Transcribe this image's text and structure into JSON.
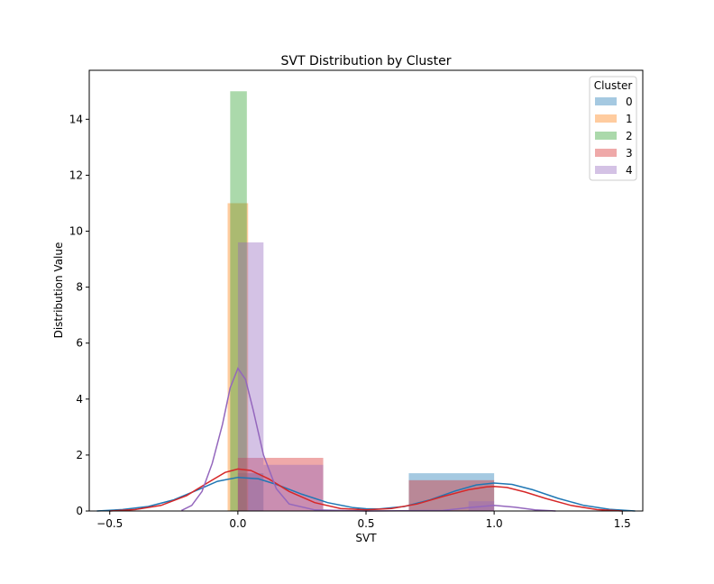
{
  "chart_data": {
    "type": "histogram",
    "title": "SVT Distribution by Cluster",
    "xlabel": "SVT",
    "ylabel": "Distribution Value",
    "xlim": [
      -0.58,
      1.58
    ],
    "ylim": [
      0,
      15.75
    ],
    "xticks": [
      -0.5,
      0.0,
      0.5,
      1.0,
      1.5
    ],
    "xtick_labels": [
      "−0.5",
      "0.0",
      "0.5",
      "1.0",
      "1.5"
    ],
    "yticks": [
      0,
      2,
      4,
      6,
      8,
      10,
      12,
      14
    ],
    "ytick_labels": [
      "0",
      "2",
      "4",
      "6",
      "8",
      "10",
      "12",
      "14"
    ],
    "grid": false,
    "legend": {
      "title": "Cluster",
      "position": "top-right",
      "labels": [
        "0",
        "1",
        "2",
        "3",
        "4"
      ]
    },
    "colors": [
      "#1f77b4",
      "#ff7f0e",
      "#2ca02c",
      "#d62728",
      "#9467bd"
    ],
    "bar_alpha": 0.4,
    "series": [
      {
        "name": "0",
        "bars": [
          {
            "x0": 0.0,
            "x1": 0.1,
            "value": 1.35
          },
          {
            "x0": 0.667,
            "x1": 1.0,
            "value": 1.35
          }
        ],
        "kde": [
          [
            -0.55,
            0.0
          ],
          [
            -0.45,
            0.05
          ],
          [
            -0.35,
            0.16
          ],
          [
            -0.25,
            0.4
          ],
          [
            -0.15,
            0.78
          ],
          [
            -0.08,
            1.06
          ],
          [
            0.0,
            1.2
          ],
          [
            0.08,
            1.15
          ],
          [
            0.15,
            0.95
          ],
          [
            0.25,
            0.6
          ],
          [
            0.35,
            0.3
          ],
          [
            0.45,
            0.12
          ],
          [
            0.5,
            0.08
          ],
          [
            0.55,
            0.07
          ],
          [
            0.65,
            0.16
          ],
          [
            0.75,
            0.4
          ],
          [
            0.85,
            0.72
          ],
          [
            0.93,
            0.93
          ],
          [
            1.0,
            1.0
          ],
          [
            1.07,
            0.95
          ],
          [
            1.15,
            0.76
          ],
          [
            1.25,
            0.45
          ],
          [
            1.35,
            0.2
          ],
          [
            1.45,
            0.06
          ],
          [
            1.55,
            0.0
          ]
        ]
      },
      {
        "name": "1",
        "bars": [
          {
            "x0": -0.04,
            "x1": 0.04,
            "value": 11.0
          }
        ],
        "kde": []
      },
      {
        "name": "2",
        "bars": [
          {
            "x0": -0.03,
            "x1": 0.035,
            "value": 15.0
          }
        ],
        "kde": []
      },
      {
        "name": "3",
        "bars": [
          {
            "x0": 0.0,
            "x1": 0.333,
            "value": 1.9
          },
          {
            "x0": 0.667,
            "x1": 1.0,
            "value": 1.1
          }
        ],
        "kde": [
          [
            -0.5,
            0.0
          ],
          [
            -0.4,
            0.05
          ],
          [
            -0.3,
            0.2
          ],
          [
            -0.2,
            0.55
          ],
          [
            -0.12,
            1.0
          ],
          [
            -0.05,
            1.38
          ],
          [
            0.0,
            1.5
          ],
          [
            0.05,
            1.45
          ],
          [
            0.12,
            1.15
          ],
          [
            0.2,
            0.7
          ],
          [
            0.3,
            0.3
          ],
          [
            0.4,
            0.09
          ],
          [
            0.5,
            0.04
          ],
          [
            0.6,
            0.09
          ],
          [
            0.7,
            0.25
          ],
          [
            0.8,
            0.52
          ],
          [
            0.9,
            0.76
          ],
          [
            0.97,
            0.86
          ],
          [
            1.0,
            0.88
          ],
          [
            1.05,
            0.84
          ],
          [
            1.12,
            0.68
          ],
          [
            1.2,
            0.45
          ],
          [
            1.3,
            0.2
          ],
          [
            1.4,
            0.05
          ],
          [
            1.5,
            0.0
          ]
        ]
      },
      {
        "name": "4",
        "bars": [
          {
            "x0": 0.0,
            "x1": 0.1,
            "value": 9.6
          },
          {
            "x0": 0.1,
            "x1": 0.333,
            "value": 1.65
          },
          {
            "x0": 0.9,
            "x1": 1.0,
            "value": 0.35
          }
        ],
        "kde": [
          [
            -0.22,
            0.02
          ],
          [
            -0.18,
            0.2
          ],
          [
            -0.14,
            0.7
          ],
          [
            -0.1,
            1.7
          ],
          [
            -0.06,
            3.1
          ],
          [
            -0.03,
            4.4
          ],
          [
            0.0,
            5.1
          ],
          [
            0.03,
            4.7
          ],
          [
            0.06,
            3.6
          ],
          [
            0.1,
            2.0
          ],
          [
            0.15,
            0.8
          ],
          [
            0.2,
            0.25
          ],
          [
            0.3,
            0.04
          ],
          [
            0.5,
            0.0
          ],
          [
            0.8,
            0.02
          ],
          [
            0.9,
            0.12
          ],
          [
            1.0,
            0.2
          ],
          [
            1.08,
            0.14
          ],
          [
            1.16,
            0.04
          ],
          [
            1.24,
            0.0
          ]
        ]
      }
    ]
  }
}
